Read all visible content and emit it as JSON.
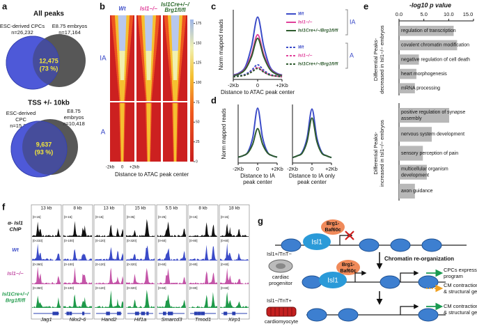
{
  "panel_letters": [
    "a",
    "b",
    "c",
    "d",
    "e",
    "f",
    "g"
  ],
  "panel_a": {
    "venns": [
      {
        "title": "All peaks",
        "left": [
          "ESC-derived CPCs",
          "n=26,232"
        ],
        "right": [
          "E8.75 embryos",
          "n=17,164"
        ],
        "overlap": [
          "12,475",
          "(73 %)"
        ]
      },
      {
        "title": "TSS +/- 10kb",
        "left": [
          "ESC-derived",
          "CPC",
          "n=15,372"
        ],
        "right": [
          "E8.75",
          "embryos",
          "n=10,418"
        ],
        "overlap": [
          "9,637",
          "(93 %)"
        ]
      }
    ]
  },
  "panel_b": {
    "columns": [
      [
        "Wt"
      ],
      [
        "Isl1−/−"
      ],
      [
        "Isl1Cre+/−/",
        "Brg1fl/fl"
      ]
    ],
    "rows": [
      "IA",
      "A"
    ],
    "xticks": [
      "-2kb",
      "0",
      "+2kb"
    ],
    "xlabel": "Distance to ATAC peak center",
    "colorbar_lim": [
      0,
      180
    ],
    "colorbar_ticks": [
      175,
      150,
      125,
      100,
      75,
      50,
      25,
      0
    ]
  },
  "chart_data": [
    {
      "type": "line",
      "ylabel": "Norm mapped reads",
      "xlabel": [
        "Distance to ATAC peak center"
      ],
      "x": [
        -2,
        -1.5,
        -1,
        -0.5,
        0,
        0.5,
        1,
        1.5,
        2
      ],
      "xlim": [
        -2,
        2
      ],
      "xticks": [
        {
          "value": -2,
          "label": "-2Kb"
        },
        {
          "value": 0,
          "label": "0"
        },
        {
          "value": 2,
          "label": "+2Kb"
        }
      ],
      "ylim": [
        0,
        190
      ],
      "annotations": [
        "IA",
        "A"
      ],
      "series": [
        {
          "name": "Wt",
          "color": "#3b4bc8",
          "dashed": false,
          "values": [
            12,
            18,
            35,
            90,
            170,
            90,
            35,
            18,
            12
          ]
        },
        {
          "name": "Isl1−/−",
          "color": "#e0409a",
          "dashed": false,
          "values": [
            11,
            16,
            30,
            68,
            122,
            68,
            30,
            16,
            11
          ]
        },
        {
          "name": "Isl1Cre+/−/Brg1fl/fl",
          "color": "#2e5b2e",
          "dashed": false,
          "values": [
            10,
            15,
            28,
            62,
            112,
            62,
            28,
            15,
            10
          ]
        },
        {
          "name": "Wt",
          "color": "#3b4bc8",
          "dashed": true,
          "values": [
            8,
            10,
            14,
            25,
            40,
            25,
            14,
            10,
            8
          ]
        },
        {
          "name": "Isl1−/−",
          "color": "#e0409a",
          "dashed": true,
          "values": [
            7,
            9,
            12,
            21,
            33,
            21,
            12,
            9,
            7
          ]
        },
        {
          "name": "Isl1Cre+/−/Brg1fl/fl",
          "color": "#2e5b2e",
          "dashed": true,
          "values": [
            7,
            9,
            12,
            20,
            30,
            20,
            12,
            9,
            7
          ]
        }
      ]
    },
    {
      "type": "line",
      "ylabel": "Norm mapped reads",
      "xlabel": [
        "Distance to IA",
        "peak center"
      ],
      "x": [
        -2,
        -1.5,
        -1,
        -0.5,
        0,
        0.5,
        1,
        1.5,
        2
      ],
      "xlim": [
        -2,
        2
      ],
      "xticks": [
        {
          "value": -2,
          "label": "-2Kb"
        },
        {
          "value": 0,
          "label": "0"
        },
        {
          "value": 2,
          "label": "+2Kb"
        }
      ],
      "ylim": [
        0,
        80
      ],
      "series": [
        {
          "color": "#3b4bc8",
          "dashed": false,
          "values": [
            8,
            10,
            15,
            35,
            75,
            35,
            15,
            10,
            8
          ]
        },
        {
          "color": "#2e5b2e",
          "dashed": false,
          "values": [
            8,
            10,
            14,
            26,
            47,
            26,
            14,
            10,
            8
          ]
        }
      ]
    },
    {
      "type": "line",
      "xlabel": [
        "Distance to IA only",
        "peak center"
      ],
      "x": [
        -2,
        -1.5,
        -1,
        -0.5,
        0,
        0.5,
        1,
        1.5,
        2
      ],
      "xlim": [
        -2,
        2
      ],
      "xticks": [
        {
          "value": -2,
          "label": "-2Kb"
        },
        {
          "value": 0,
          "label": "0"
        },
        {
          "value": 2,
          "label": "+2Kb"
        }
      ],
      "ylim": [
        0,
        65
      ],
      "series": [
        {
          "color": "#3b4bc8",
          "dashed": false,
          "values": [
            6,
            8,
            12,
            28,
            60,
            28,
            12,
            8,
            6
          ]
        },
        {
          "color": "#2e5b2e",
          "dashed": false,
          "values": [
            6,
            8,
            11,
            24,
            50,
            24,
            11,
            8,
            6
          ]
        }
      ]
    },
    {
      "type": "barh",
      "title": "-log10 p value",
      "xlim": [
        0,
        15
      ],
      "xticks": [
        {
          "value": 0,
          "label": "0.0"
        },
        {
          "value": 5,
          "label": "5.0"
        },
        {
          "value": 10,
          "label": "10.0"
        },
        {
          "value": 15,
          "label": "15.0"
        }
      ],
      "group_label": [
        "Differential Peaks-",
        "decreased in Isl1−/− embryos"
      ],
      "color": "#b8b8b8",
      "categories": [
        "regulation of transcription",
        "covalent chromatin modification",
        "negative regulation of cell death",
        "heart morphogenesis",
        "mRNA processing"
      ],
      "values": [
        11,
        11.7,
        4,
        3.5,
        3.2
      ]
    },
    {
      "type": "barh",
      "xlim": [
        0,
        15
      ],
      "group_label": [
        "Differential Peaks-",
        "increased in Isl1−/− embryos"
      ],
      "color": "#b8b8b8",
      "categories": [
        "positive regulation of synapse assembly",
        "nervous system development",
        "sensory perception of pain",
        "multicellular organism development",
        "axon guidance"
      ],
      "values": [
        10.1,
        6.6,
        4.8,
        5.6,
        3.2
      ]
    }
  ],
  "panel_f": {
    "row_labels": [
      [
        "α- Isl1",
        "ChIP"
      ],
      [
        "Wt"
      ],
      [
        "Isl1−/−"
      ],
      [
        "Isl1Cre+/−/",
        "Brg1fl/fl"
      ]
    ],
    "columns": [
      {
        "scale": "13 kb",
        "gene": "Jag1",
        "ranges": [
          "[0-15]",
          "[0-233]",
          "[0-360]",
          "[0-360]"
        ]
      },
      {
        "scale": "8 kb",
        "gene": "Nkx2-6",
        "ranges": [
          "[0-15]",
          "[0-100]",
          "[0-100]",
          "[0-100]"
        ]
      },
      {
        "scale": "13 kb",
        "gene": "Hand2",
        "ranges": [
          "[0-15]",
          "[0-120]",
          "[0-120]",
          "[0-120]"
        ]
      },
      {
        "scale": "15 kb",
        "gene": "Hif1a",
        "ranges": [
          "[0-35]",
          "[0-320]",
          "[0-320]",
          "[0-320]"
        ]
      },
      {
        "scale": "5.5 kb",
        "gene": "Smarcd3",
        "ranges": [
          "[0-25]",
          "[0-60]",
          "[0-60]",
          "[0-60]"
        ]
      },
      {
        "scale": "8 kb",
        "gene": "Tmod1",
        "ranges": [
          "[0-15]",
          "[0-80]",
          "[0-80]",
          "[0-80]"
        ]
      },
      {
        "scale": "18 kb",
        "gene": "Xirp1",
        "ranges": [
          "[0-15]",
          "[0-60]",
          "[0-60]",
          "[0-60]"
        ]
      }
    ]
  },
  "panel_g": {
    "complex_top": [
      "Brg1-",
      "Baf60c"
    ],
    "isl1_top": "Isl1",
    "progenitor_marker": "Isl1+/TnT−",
    "progenitor_label": [
      "cardiac",
      "progenitor"
    ],
    "transition": "Chromatin re-organization",
    "complex_mid": [
      "Brg1-",
      "Baf60c"
    ],
    "isl1_mid": "Isl1",
    "output_1": [
      "CPCs expression",
      "program"
    ],
    "output_2": [
      "CM contraction",
      "& structural genes"
    ],
    "cm_marker": "Isl1−/TnT+",
    "cm_label": "cardiomyocyte",
    "output_3": [
      "CM contraction",
      "& structural genes"
    ]
  }
}
